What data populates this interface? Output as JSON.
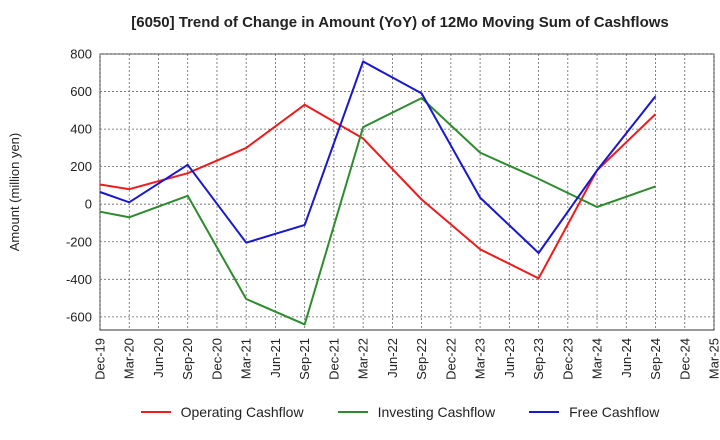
{
  "chart_data": {
    "type": "line",
    "title": "[6050]  Trend of Change in Amount (YoY) of 12Mo Moving Sum of Cashflows",
    "xlabel": "",
    "ylabel": "Amount (million yen)",
    "ylim": [
      -670,
      800
    ],
    "yticks": [
      -600,
      -400,
      -200,
      0,
      200,
      400,
      600,
      800
    ],
    "ytick_labels": [
      "-600",
      "-400",
      "-200",
      "0",
      "200",
      "400",
      "600",
      "800"
    ],
    "categories": [
      "Dec-19",
      "Mar-20",
      "Jun-20",
      "Sep-20",
      "Dec-20",
      "Mar-21",
      "Jun-21",
      "Sep-21",
      "Dec-21",
      "Mar-22",
      "Jun-22",
      "Sep-22",
      "Dec-22",
      "Mar-23",
      "Jun-23",
      "Sep-23",
      "Dec-23",
      "Mar-24",
      "Jun-24",
      "Sep-24",
      "Dec-24",
      "Mar-25"
    ],
    "series": [
      {
        "name": "Operating Cashflow",
        "color": "#ee1c1c",
        "x": [
          "Dec-19",
          "Mar-20",
          "Sep-20",
          "Mar-21",
          "Sep-21",
          "Mar-22",
          "Sep-22",
          "Mar-23",
          "Sep-23",
          "Mar-24",
          "Sep-24"
        ],
        "values": [
          105,
          80,
          165,
          300,
          530,
          350,
          25,
          -240,
          -395,
          180,
          480
        ]
      },
      {
        "name": "Investing Cashflow",
        "color": "#2e8b2e",
        "x": [
          "Dec-19",
          "Mar-20",
          "Sep-20",
          "Mar-21",
          "Sep-21",
          "Mar-22",
          "Sep-22",
          "Mar-23",
          "Sep-23",
          "Mar-24",
          "Sep-24"
        ],
        "values": [
          -40,
          -70,
          45,
          -505,
          -640,
          410,
          565,
          275,
          135,
          -15,
          95
        ]
      },
      {
        "name": "Free Cashflow",
        "color": "#1818cc",
        "x": [
          "Dec-19",
          "Mar-20",
          "Sep-20",
          "Mar-21",
          "Sep-21",
          "Mar-22",
          "Sep-22",
          "Mar-23",
          "Sep-23",
          "Mar-24",
          "Sep-24"
        ],
        "values": [
          65,
          10,
          210,
          -205,
          -110,
          760,
          590,
          35,
          -260,
          180,
          575
        ]
      }
    ],
    "grid": true,
    "legend_position": "bottom-center"
  }
}
